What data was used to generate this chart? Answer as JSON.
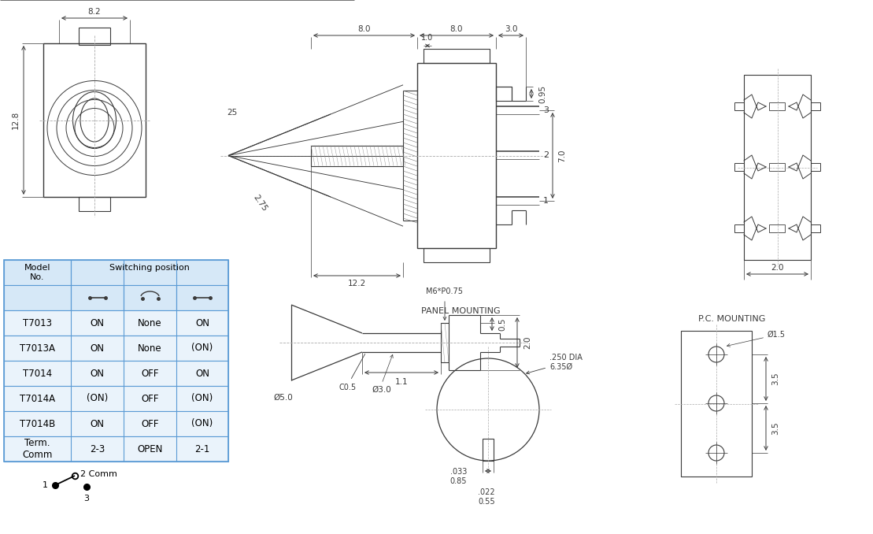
{
  "bg_color": "#ffffff",
  "line_color": "#3a3a3a",
  "table_header_bg": "#d6e8f7",
  "table_row_bg": "#eaf3fb",
  "table_border": "#5b9bd5",
  "table_data": {
    "models": [
      "T7013",
      "T7013A",
      "T7014",
      "T7014A",
      "T7014B",
      "Term.\nComm"
    ],
    "col1": [
      "ON",
      "ON",
      "ON",
      "(ON)",
      "ON",
      "2-3"
    ],
    "col2": [
      "None",
      "None",
      "OFF",
      "OFF",
      "OFF",
      "OPEN"
    ],
    "col3": [
      "ON",
      "(ON)",
      "ON",
      "(ON)",
      "(ON)",
      "2-1"
    ]
  },
  "dim_82": "8.2",
  "dim_128": "12.8",
  "dim_80a": "8.0",
  "dim_80b": "8.0",
  "dim_30": "3.0",
  "dim_10": "1.0",
  "dim_095": "0.95",
  "dim_70": "7.0",
  "dim_122": "12.2",
  "dim_275": "2.75",
  "dim_25": "25",
  "dim_m6": "M6*P0.75",
  "dim_c05": "C0.5",
  "dim_05": "0.5",
  "dim_20": "2.0",
  "dim_30b": "3.0",
  "dim_11": "1.1",
  "dim_ph50": "Ø5.0",
  "dim_ph30": "Ø3.0",
  "panel_title": "PANEL MOUNTING",
  "panel_dia": ".250 DIA\n6.35Ø",
  "panel_033": ".033\n0.85",
  "panel_022": ".022\n0.55",
  "pc_title": "P.C. MOUNTING",
  "pc_35a": "3.5",
  "pc_35b": "3.5",
  "pc_ph15": "Ø1.5",
  "pc_20": "2.0"
}
